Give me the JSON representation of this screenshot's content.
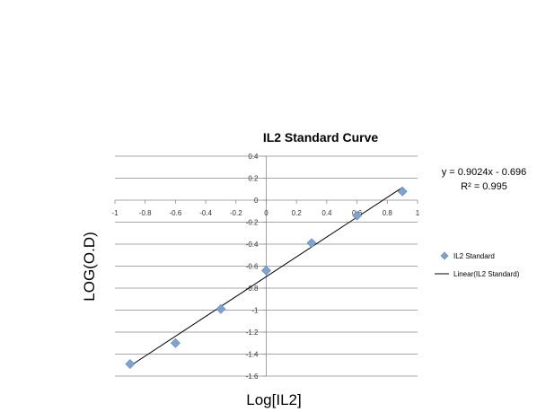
{
  "chart_data": {
    "type": "scatter",
    "title": "IL2 Standard Curve",
    "xlabel": "Log[IL2]",
    "ylabel": "LOG(O.D)",
    "xlim": [
      -1,
      1
    ],
    "ylim": [
      -1.6,
      0.4
    ],
    "x_ticks": [
      "-1",
      "-0.8",
      "-0.6",
      "-0.4",
      "-0.2",
      "0",
      "0.2",
      "0.4",
      "0.6",
      "0.8",
      "1"
    ],
    "y_ticks": [
      "0.4",
      "0.2",
      "0",
      "-0.2",
      "-0.4",
      "-0.6",
      "-0.8",
      "-1",
      "-1.2",
      "-1.4",
      "-1.6"
    ],
    "grid": "horizontal",
    "legend_position": "right",
    "series": [
      {
        "name": "IL2 Standard",
        "marker": "diamond",
        "color": "#7ba4d6",
        "x": [
          -0.9,
          -0.6,
          -0.3,
          0.0,
          0.3,
          0.6,
          0.9
        ],
        "y": [
          -1.49,
          -1.3,
          -0.99,
          -0.64,
          -0.39,
          -0.14,
          0.08
        ]
      }
    ],
    "trendline": {
      "name": "Linear(IL2 Standard)",
      "type": "linear",
      "slope": 0.9024,
      "intercept": -0.696,
      "x_range": [
        -0.9,
        0.9
      ],
      "color": "#000000"
    },
    "annotations": {
      "equation": "y = 0.9024x - 0.696",
      "r_squared": "R² = 0.995"
    }
  }
}
